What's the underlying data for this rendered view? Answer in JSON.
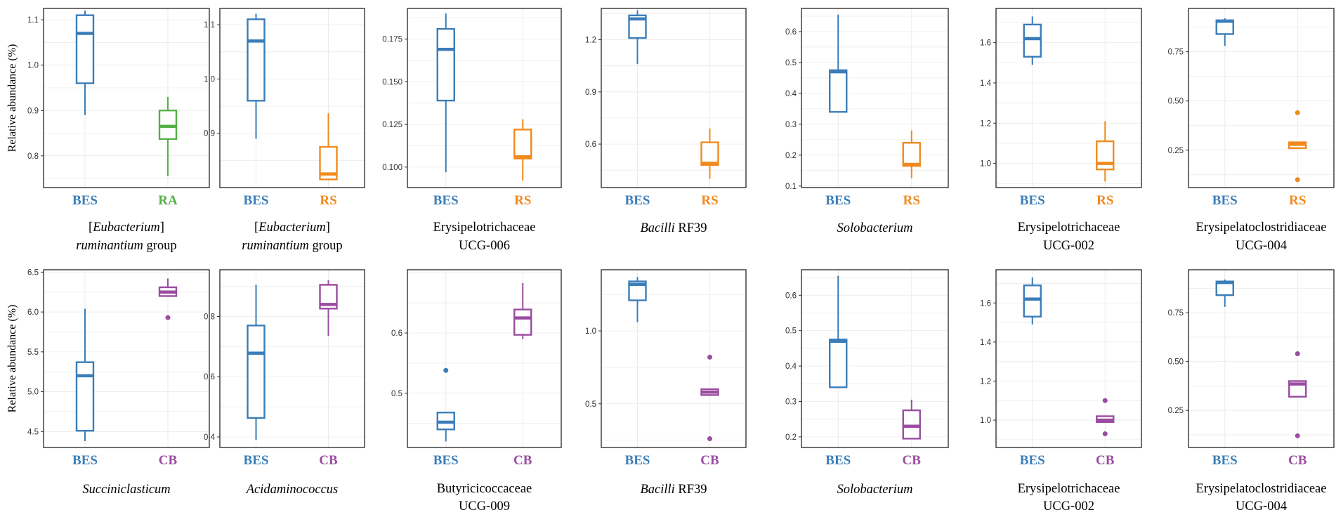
{
  "y_axis_title": "Relative abundance (%)",
  "colors": {
    "BES": "#3a7db8",
    "RA": "#54b046",
    "RS": "#f08a1e",
    "CB": "#9a4ca0"
  },
  "chart_data": [
    {
      "type": "box",
      "row": 0,
      "col": 0,
      "ylabel": "Relative abundance (%)",
      "ylim": [
        0.73,
        1.125
      ],
      "yticks": [
        "0.8",
        "0.9",
        "1.0",
        "1.1"
      ],
      "caption": [
        [
          [
            "[",
            ""
          ],
          [
            "Eubacterium",
            "i"
          ],
          [
            "]",
            ""
          ]
        ],
        [
          [
            "ruminantium",
            "i"
          ],
          [
            " group",
            ""
          ]
        ]
      ],
      "groups": [
        {
          "name": "BES",
          "color": "#3a7db8",
          "min": 0.89,
          "q1": 0.96,
          "median": 1.07,
          "q3": 1.11,
          "max": 1.12,
          "outliers": []
        },
        {
          "name": "RA",
          "color": "#54b046",
          "min": 0.755,
          "q1": 0.837,
          "median": 0.865,
          "q3": 0.9,
          "max": 0.93,
          "outliers": []
        }
      ]
    },
    {
      "type": "box",
      "row": 0,
      "col": 1,
      "ylabel": "",
      "ylim": [
        0.8,
        1.13
      ],
      "yticks": [
        "0.9",
        "1.0",
        "1.1"
      ],
      "caption": [
        [
          [
            "[",
            ""
          ],
          [
            "Eubacterium",
            "i"
          ],
          [
            "]",
            ""
          ]
        ],
        [
          [
            "ruminantium",
            "i"
          ],
          [
            " group",
            ""
          ]
        ]
      ],
      "groups": [
        {
          "name": "BES",
          "color": "#3a7db8",
          "min": 0.89,
          "q1": 0.96,
          "median": 1.07,
          "q3": 1.11,
          "max": 1.12,
          "outliers": []
        },
        {
          "name": "RS",
          "color": "#f08a1e",
          "min": 0.815,
          "q1": 0.815,
          "median": 0.825,
          "q3": 0.875,
          "max": 0.937,
          "outliers": []
        }
      ]
    },
    {
      "type": "box",
      "row": 0,
      "col": 2,
      "ylabel": "",
      "ylim": [
        0.088,
        0.193
      ],
      "yticks": [
        "0.100",
        "0.125",
        "0.150",
        "0.175"
      ],
      "caption": [
        [
          [
            "Erysipelotrichaceae",
            ""
          ]
        ],
        [
          [
            "UCG-006",
            ""
          ]
        ]
      ],
      "groups": [
        {
          "name": "BES",
          "color": "#3a7db8",
          "min": 0.097,
          "q1": 0.139,
          "median": 0.169,
          "q3": 0.181,
          "max": 0.19,
          "outliers": []
        },
        {
          "name": "RS",
          "color": "#f08a1e",
          "min": 0.092,
          "q1": 0.105,
          "median": 0.106,
          "q3": 0.122,
          "max": 0.128,
          "outliers": []
        }
      ]
    },
    {
      "type": "box",
      "row": 0,
      "col": 3,
      "ylabel": "",
      "ylim": [
        0.35,
        1.38
      ],
      "yticks": [
        "0.6",
        "0.9",
        "1.2"
      ],
      "caption": [
        [
          [
            "Bacilli",
            "i"
          ],
          [
            " RF39",
            ""
          ]
        ]
      ],
      "groups": [
        {
          "name": "BES",
          "color": "#3a7db8",
          "min": 1.06,
          "q1": 1.21,
          "median": 1.32,
          "q3": 1.34,
          "max": 1.37,
          "outliers": []
        },
        {
          "name": "RS",
          "color": "#f08a1e",
          "min": 0.4,
          "q1": 0.48,
          "median": 0.49,
          "q3": 0.61,
          "max": 0.69,
          "outliers": []
        }
      ]
    },
    {
      "type": "box",
      "row": 0,
      "col": 4,
      "ylabel": "",
      "ylim": [
        0.095,
        0.675
      ],
      "yticks": [
        "0.1",
        "0.2",
        "0.3",
        "0.4",
        "0.5",
        "0.6"
      ],
      "caption": [
        [
          [
            "Solobacterium",
            "i"
          ]
        ]
      ],
      "groups": [
        {
          "name": "BES",
          "color": "#3a7db8",
          "min": 0.34,
          "q1": 0.34,
          "median": 0.47,
          "q3": 0.475,
          "max": 0.655,
          "outliers": []
        },
        {
          "name": "RS",
          "color": "#f08a1e",
          "min": 0.125,
          "q1": 0.165,
          "median": 0.17,
          "q3": 0.24,
          "max": 0.28,
          "outliers": []
        }
      ]
    },
    {
      "type": "box",
      "row": 0,
      "col": 5,
      "ylabel": "",
      "ylim": [
        0.88,
        1.77
      ],
      "yticks": [
        "1.0",
        "1.2",
        "1.4",
        "1.6"
      ],
      "caption": [
        [
          [
            "Erysipelotrichaceae",
            ""
          ]
        ],
        [
          [
            "UCG-002",
            ""
          ]
        ]
      ],
      "groups": [
        {
          "name": "BES",
          "color": "#3a7db8",
          "min": 1.49,
          "q1": 1.53,
          "median": 1.62,
          "q3": 1.69,
          "max": 1.73,
          "outliers": []
        },
        {
          "name": "RS",
          "color": "#f08a1e",
          "min": 0.91,
          "q1": 0.97,
          "median": 1.0,
          "q3": 1.11,
          "max": 1.21,
          "outliers": []
        }
      ]
    },
    {
      "type": "box",
      "row": 0,
      "col": 6,
      "ylabel": "",
      "ylim": [
        0.06,
        0.97
      ],
      "yticks": [
        "0.25",
        "0.50",
        "0.75"
      ],
      "caption": [
        [
          [
            "Erysipelatoclostridiaceae",
            ""
          ]
        ],
        [
          [
            "UCG-004",
            ""
          ]
        ]
      ],
      "groups": [
        {
          "name": "BES",
          "color": "#3a7db8",
          "min": 0.78,
          "q1": 0.84,
          "median": 0.905,
          "q3": 0.91,
          "max": 0.92,
          "outliers": []
        },
        {
          "name": "RS",
          "color": "#f08a1e",
          "min": 0.26,
          "q1": 0.26,
          "median": 0.28,
          "q3": 0.29,
          "max": 0.29,
          "outliers": [
            0.44,
            0.1
          ]
        }
      ]
    },
    {
      "type": "box",
      "row": 1,
      "col": 0,
      "ylabel": "Relative abundance (%)",
      "ylim": [
        4.3,
        6.53
      ],
      "yticks": [
        "4.5",
        "5.0",
        "5.5",
        "6.0",
        "6.5"
      ],
      "caption": [
        [
          [
            "Succiniclasticum",
            "i"
          ]
        ]
      ],
      "groups": [
        {
          "name": "BES",
          "color": "#3a7db8",
          "min": 4.38,
          "q1": 4.51,
          "median": 5.2,
          "q3": 5.37,
          "max": 6.04,
          "outliers": []
        },
        {
          "name": "CB",
          "color": "#9a4ca0",
          "min": 6.2,
          "q1": 6.2,
          "median": 6.25,
          "q3": 6.31,
          "max": 6.42,
          "outliers": [
            5.93
          ]
        }
      ]
    },
    {
      "type": "box",
      "row": 1,
      "col": 1,
      "ylabel": "",
      "ylim": [
        0.365,
        0.955
      ],
      "yticks": [
        "0.4",
        "0.6",
        "0.8"
      ],
      "caption": [
        [
          [
            "Acidaminococcus",
            "i"
          ]
        ]
      ],
      "groups": [
        {
          "name": "BES",
          "color": "#3a7db8",
          "min": 0.39,
          "q1": 0.463,
          "median": 0.678,
          "q3": 0.77,
          "max": 0.905,
          "outliers": []
        },
        {
          "name": "CB",
          "color": "#9a4ca0",
          "min": 0.735,
          "q1": 0.826,
          "median": 0.84,
          "q3": 0.905,
          "max": 0.92,
          "outliers": []
        }
      ]
    },
    {
      "type": "box",
      "row": 1,
      "col": 2,
      "ylabel": "",
      "ylim": [
        0.41,
        0.705
      ],
      "yticks": [
        "0.5",
        "0.6"
      ],
      "caption": [
        [
          [
            "Butyricicoccaceae",
            ""
          ]
        ],
        [
          [
            "UCG-009",
            ""
          ]
        ]
      ],
      "groups": [
        {
          "name": "BES",
          "color": "#3a7db8",
          "min": 0.42,
          "q1": 0.44,
          "median": 0.452,
          "q3": 0.468,
          "max": 0.468,
          "outliers": [
            0.538
          ]
        },
        {
          "name": "CB",
          "color": "#9a4ca0",
          "min": 0.59,
          "q1": 0.597,
          "median": 0.625,
          "q3": 0.639,
          "max": 0.683,
          "outliers": []
        }
      ]
    },
    {
      "type": "box",
      "row": 1,
      "col": 3,
      "ylabel": "",
      "ylim": [
        0.2,
        1.42
      ],
      "yticks": [
        "0.5",
        "1.0"
      ],
      "caption": [
        [
          [
            "Bacilli",
            "i"
          ],
          [
            " RF39",
            ""
          ]
        ]
      ],
      "groups": [
        {
          "name": "BES",
          "color": "#3a7db8",
          "min": 1.06,
          "q1": 1.21,
          "median": 1.32,
          "q3": 1.34,
          "max": 1.37,
          "outliers": []
        },
        {
          "name": "CB",
          "color": "#9a4ca0",
          "min": 0.56,
          "q1": 0.56,
          "median": 0.58,
          "q3": 0.6,
          "max": 0.6,
          "outliers": [
            0.82,
            0.26
          ]
        }
      ]
    },
    {
      "type": "box",
      "row": 1,
      "col": 4,
      "ylabel": "",
      "ylim": [
        0.17,
        0.672
      ],
      "yticks": [
        "0.2",
        "0.3",
        "0.4",
        "0.5",
        "0.6"
      ],
      "caption": [
        [
          [
            "Solobacterium",
            "i"
          ]
        ]
      ],
      "groups": [
        {
          "name": "BES",
          "color": "#3a7db8",
          "min": 0.34,
          "q1": 0.34,
          "median": 0.47,
          "q3": 0.475,
          "max": 0.655,
          "outliers": []
        },
        {
          "name": "CB",
          "color": "#9a4ca0",
          "min": 0.195,
          "q1": 0.195,
          "median": 0.23,
          "q3": 0.275,
          "max": 0.305,
          "outliers": []
        }
      ]
    },
    {
      "type": "box",
      "row": 1,
      "col": 5,
      "ylabel": "",
      "ylim": [
        0.86,
        1.77
      ],
      "yticks": [
        "1.0",
        "1.2",
        "1.4",
        "1.6"
      ],
      "caption": [
        [
          [
            "Erysipelotrichaceae",
            ""
          ]
        ],
        [
          [
            "UCG-002",
            ""
          ]
        ]
      ],
      "groups": [
        {
          "name": "BES",
          "color": "#3a7db8",
          "min": 1.49,
          "q1": 1.53,
          "median": 1.62,
          "q3": 1.69,
          "max": 1.73,
          "outliers": []
        },
        {
          "name": "CB",
          "color": "#9a4ca0",
          "min": 0.99,
          "q1": 0.99,
          "median": 1.0,
          "q3": 1.02,
          "max": 1.02,
          "outliers": [
            1.1,
            0.93
          ]
        }
      ]
    },
    {
      "type": "box",
      "row": 1,
      "col": 6,
      "ylabel": "",
      "ylim": [
        0.06,
        0.97
      ],
      "yticks": [
        "0.25",
        "0.50",
        "0.75"
      ],
      "caption": [
        [
          [
            "Erysipelatoclostridiaceae",
            ""
          ]
        ],
        [
          [
            "UCG-004",
            ""
          ]
        ]
      ],
      "groups": [
        {
          "name": "BES",
          "color": "#3a7db8",
          "min": 0.78,
          "q1": 0.84,
          "median": 0.905,
          "q3": 0.91,
          "max": 0.92,
          "outliers": []
        },
        {
          "name": "CB",
          "color": "#9a4ca0",
          "min": 0.32,
          "q1": 0.32,
          "median": 0.385,
          "q3": 0.4,
          "max": 0.4,
          "outliers": [
            0.54,
            0.12
          ]
        }
      ]
    }
  ]
}
